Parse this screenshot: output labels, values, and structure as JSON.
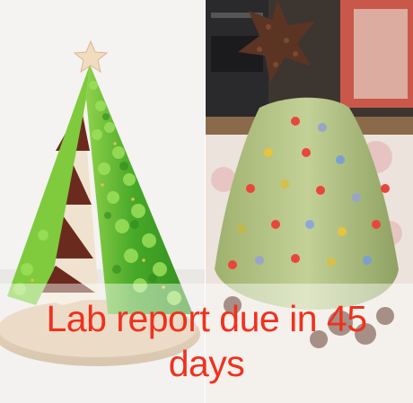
{
  "meme": {
    "caption": "Lab report due in 45 days"
  },
  "colors": {
    "caption_text": "#f0311d",
    "expectation_frosting": "#4fb22c",
    "reality_frosting": "#b9c98d",
    "cake_sponge": "#6b2a1e",
    "star_topper": "#f2dcc0",
    "reality_star": "#5b3424"
  },
  "panels": {
    "left": {
      "subject": "tree-cake-expectation-image"
    },
    "right": {
      "subject": "tree-cake-reality-image"
    }
  }
}
